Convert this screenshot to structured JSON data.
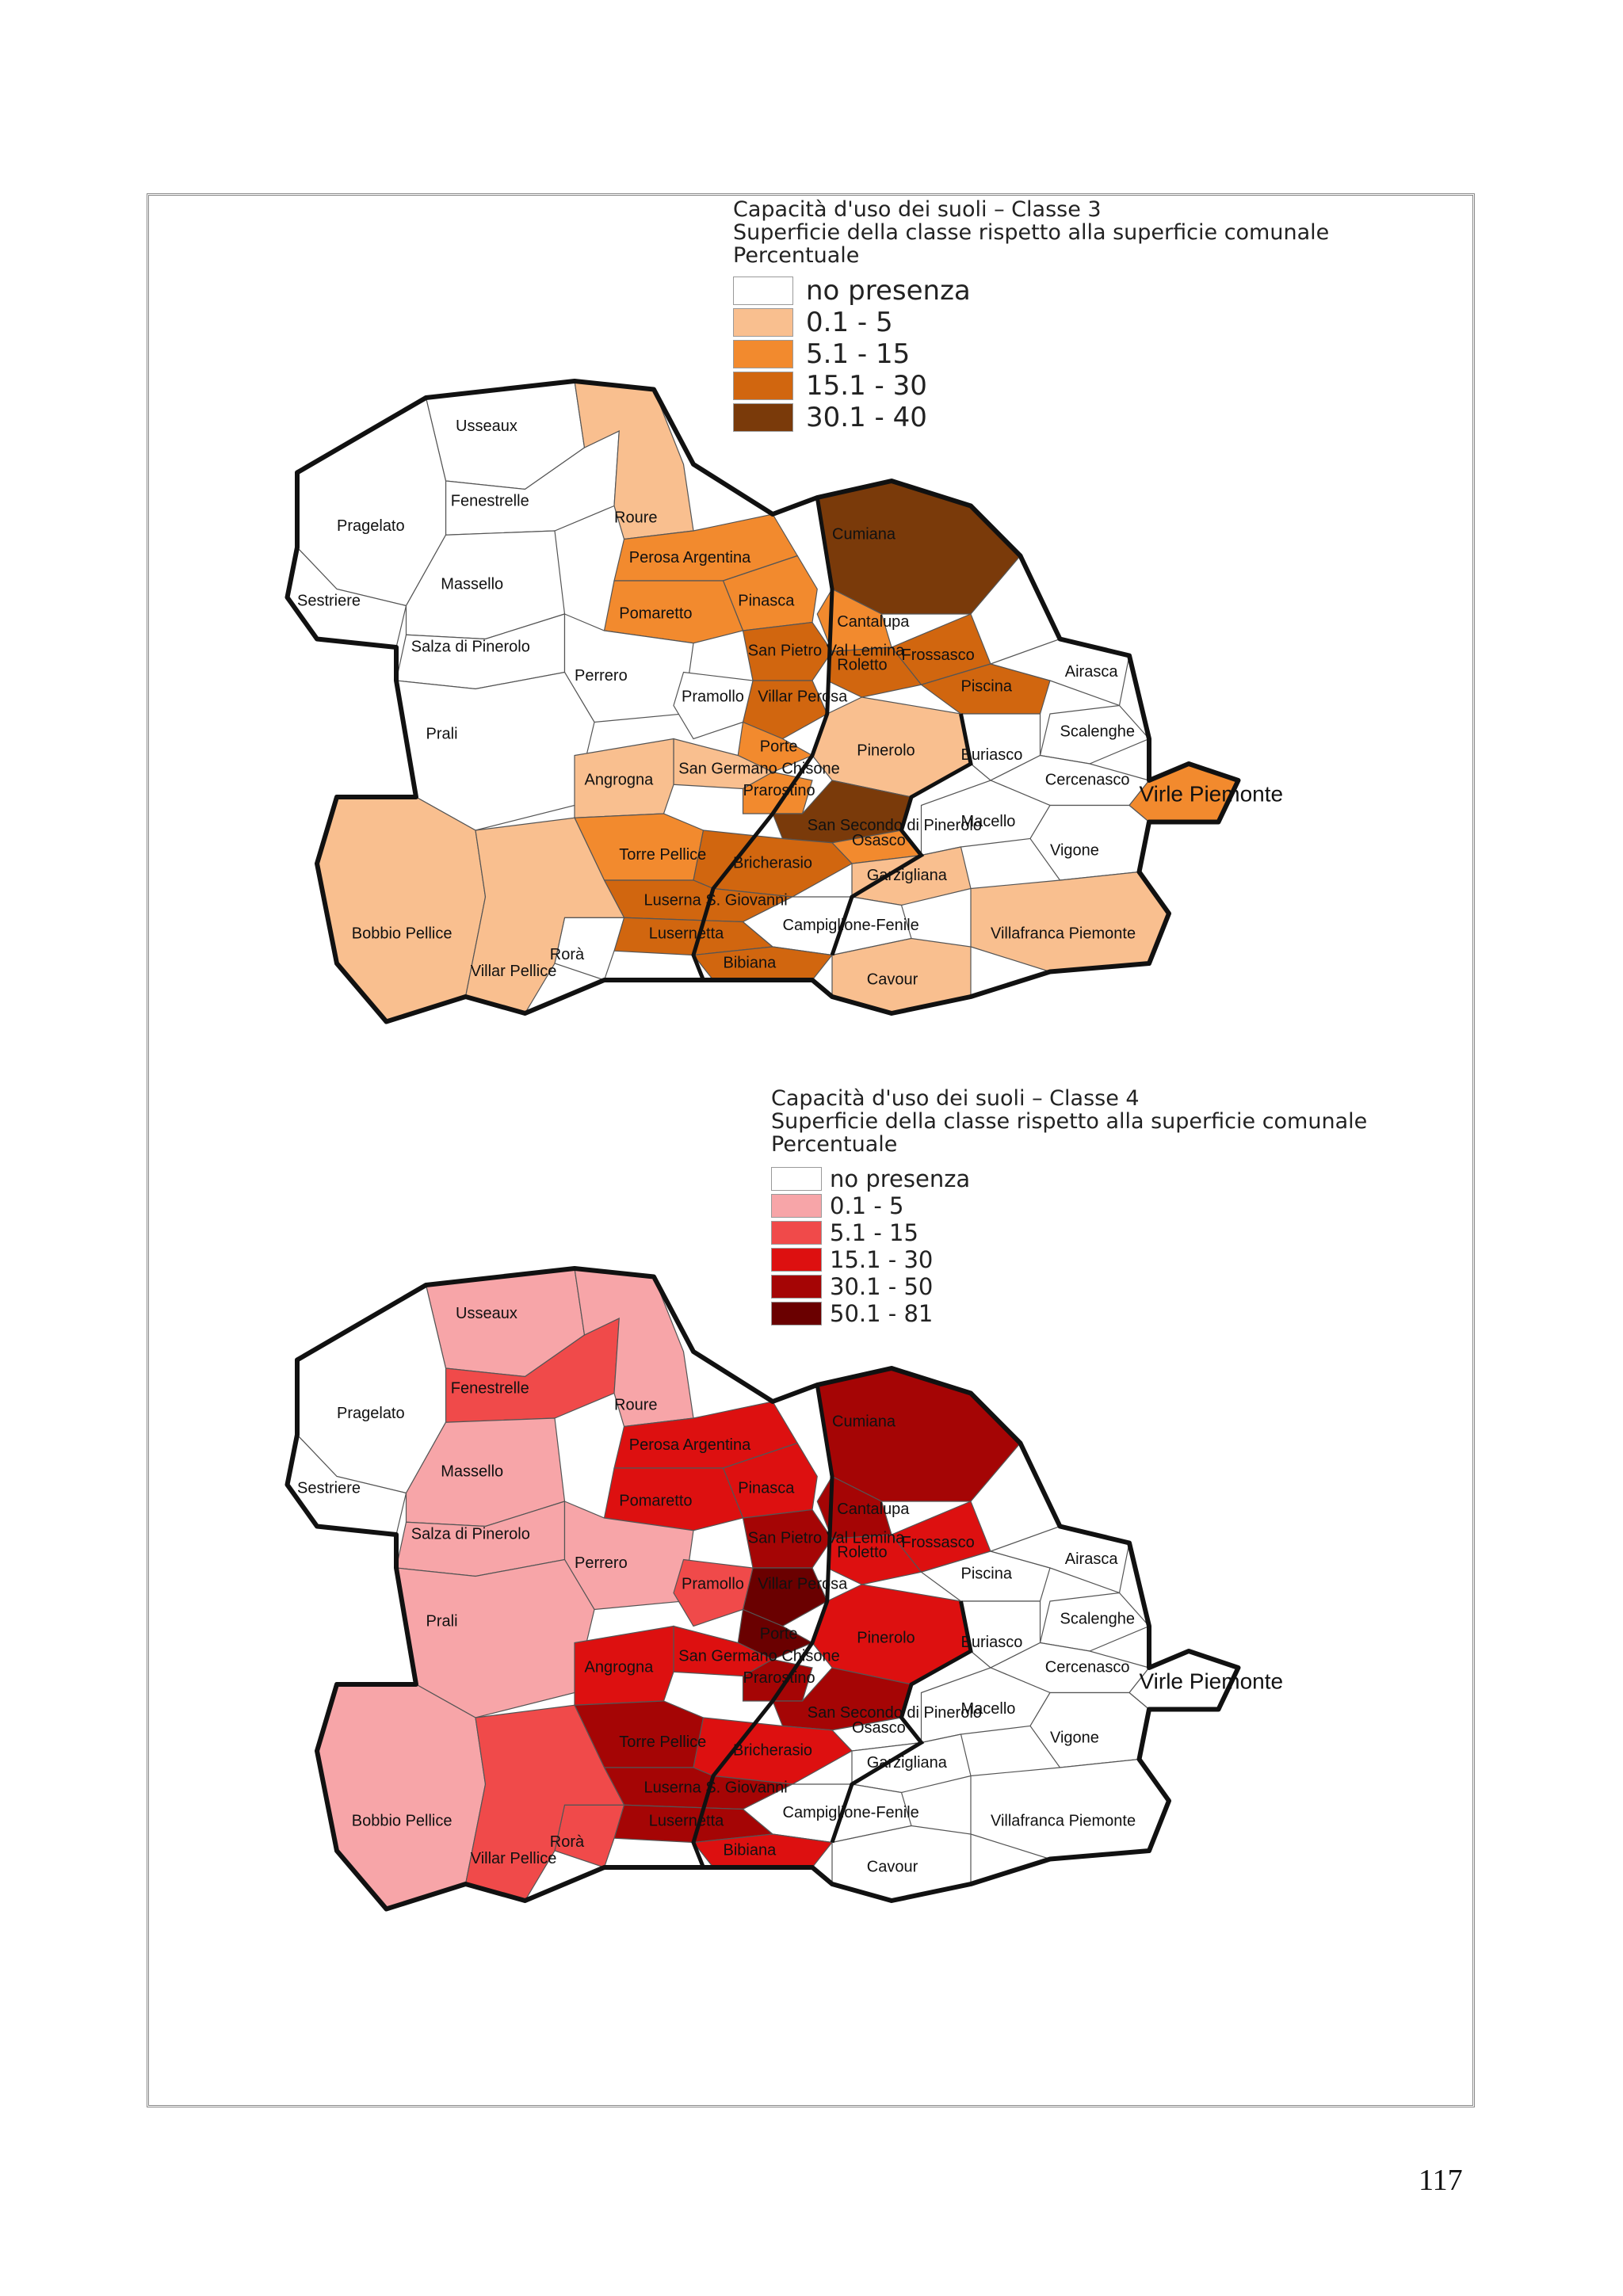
{
  "map1": {
    "title_lines": [
      "Capacità d'uso dei suoli – Classe 3",
      "Superficie  della classe rispetto alla superficie comunale",
      "Percentuale"
    ],
    "legend": [
      {
        "label": "no presenza",
        "color": "#ffffff"
      },
      {
        "label": "0.1 - 5",
        "color": "#f9bf8f"
      },
      {
        "label": "5.1 - 15",
        "color": "#f28a2e"
      },
      {
        "label": "15.1 - 30",
        "color": "#d1660f"
      },
      {
        "label": "30.1 - 40",
        "color": "#7a3a0a"
      }
    ]
  },
  "map2": {
    "title_lines": [
      "Capacità d'uso dei suoli – Classe 4",
      "Superficie  della classe rispetto alla superficie comunale",
      "Percentuale"
    ],
    "legend": [
      {
        "label": "no presenza",
        "color": "#ffffff"
      },
      {
        "label": "0.1 - 5",
        "color": "#f7a5a8"
      },
      {
        "label": "5.1 - 15",
        "color": "#f04a4a"
      },
      {
        "label": "15.1 - 30",
        "color": "#dd1010"
      },
      {
        "label": "30.1 - 50",
        "color": "#a50505"
      },
      {
        "label": "50.1 - 81",
        "color": "#6a0000"
      }
    ]
  },
  "municipalities": [
    {
      "name": "Usseaux",
      "c3": 0,
      "c4": 1
    },
    {
      "name": "Fenestrelle",
      "c3": 0,
      "c4": 2
    },
    {
      "name": "Pragelato",
      "c3": 0,
      "c4": 0
    },
    {
      "name": "Roure",
      "c3": 1,
      "c4": 1
    },
    {
      "name": "Sestriere",
      "c3": 0,
      "c4": 0
    },
    {
      "name": "Massello",
      "c3": 0,
      "c4": 1
    },
    {
      "name": "Perosa Argentina",
      "c3": 2,
      "c4": 3
    },
    {
      "name": "Cumiana",
      "c3": 4,
      "c4": 4
    },
    {
      "name": "Pinasca",
      "c3": 2,
      "c4": 3
    },
    {
      "name": "Pomaretto",
      "c3": 2,
      "c4": 3
    },
    {
      "name": "Cantalupa",
      "c3": 2,
      "c4": 4
    },
    {
      "name": "Salza di Pinerolo",
      "c3": 0,
      "c4": 1
    },
    {
      "name": "San Pietro Val Lemina",
      "c3": 3,
      "c4": 4
    },
    {
      "name": "Frossasco",
      "c3": 3,
      "c4": 3
    },
    {
      "name": "Perrero",
      "c3": 0,
      "c4": 1
    },
    {
      "name": "Roletto",
      "c3": 3,
      "c4": 3
    },
    {
      "name": "Piscina",
      "c3": 3,
      "c4": 0
    },
    {
      "name": "Airasca",
      "c3": 0,
      "c4": 0
    },
    {
      "name": "Villar Perosa",
      "c3": 3,
      "c4": 5
    },
    {
      "name": "Pramollo",
      "c3": 0,
      "c4": 2
    },
    {
      "name": "Porte",
      "c3": 2,
      "c4": 5
    },
    {
      "name": "Prali",
      "c3": 0,
      "c4": 1
    },
    {
      "name": "Scalenghe",
      "c3": 0,
      "c4": 0
    },
    {
      "name": "San Germano Chisone",
      "c3": 1,
      "c4": 3
    },
    {
      "name": "Pinerolo",
      "c3": 1,
      "c4": 3
    },
    {
      "name": "Buriasco",
      "c3": 0,
      "c4": 0
    },
    {
      "name": "Angrogna",
      "c3": 1,
      "c4": 3
    },
    {
      "name": "Prarostino",
      "c3": 2,
      "c4": 4
    },
    {
      "name": "Cercenasco",
      "c3": 0,
      "c4": 0
    },
    {
      "name": "San Secondo di Pinerolo",
      "c3": 4,
      "c4": 4
    },
    {
      "name": "Virle Piemonte",
      "c3": 2,
      "c4": 0
    },
    {
      "name": "Osasco",
      "c3": 2,
      "c4": 0
    },
    {
      "name": "Macello",
      "c3": 0,
      "c4": 0
    },
    {
      "name": "Torre Pellice",
      "c3": 2,
      "c4": 4
    },
    {
      "name": "Vigone",
      "c3": 0,
      "c4": 0
    },
    {
      "name": "Bricherasio",
      "c3": 3,
      "c4": 3
    },
    {
      "name": "Garzigliana",
      "c3": 1,
      "c4": 0
    },
    {
      "name": "Luserna S. Giovanni",
      "c3": 3,
      "c4": 4
    },
    {
      "name": "Bobbio Pellice",
      "c3": 1,
      "c4": 1
    },
    {
      "name": "Lusernetta",
      "c3": 3,
      "c4": 4
    },
    {
      "name": "Campiglione-Fenile",
      "c3": 0,
      "c4": 0
    },
    {
      "name": "Villafranca Piemonte",
      "c3": 1,
      "c4": 0
    },
    {
      "name": "Bibiana",
      "c3": 3,
      "c4": 3
    },
    {
      "name": "Rorà",
      "c3": 0,
      "c4": 2
    },
    {
      "name": "Cavour",
      "c3": 1,
      "c4": 0
    },
    {
      "name": "Villar Pellice",
      "c3": 1,
      "c4": 2
    }
  ],
  "page_number": "117"
}
